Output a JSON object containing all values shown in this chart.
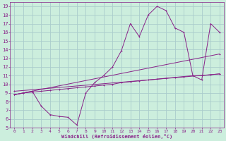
{
  "xlabel": "Windchill (Refroidissement éolien,°C)",
  "background_color": "#cceedd",
  "grid_color": "#aacccc",
  "line_color": "#882288",
  "xlim": [
    -0.5,
    23.5
  ],
  "ylim": [
    5,
    19.5
  ],
  "xticks": [
    0,
    1,
    2,
    3,
    4,
    5,
    6,
    7,
    8,
    9,
    10,
    11,
    12,
    13,
    14,
    15,
    16,
    17,
    18,
    19,
    20,
    21,
    22,
    23
  ],
  "yticks": [
    5,
    6,
    7,
    8,
    9,
    10,
    11,
    12,
    13,
    14,
    15,
    16,
    17,
    18,
    19
  ],
  "line_jagged_x": [
    0,
    1,
    2,
    3,
    4,
    5,
    6,
    7,
    8,
    9,
    10,
    11,
    12,
    13,
    14,
    15,
    16,
    17,
    18,
    19,
    20,
    21,
    22,
    23
  ],
  "line_jagged_y": [
    8.8,
    9.0,
    9.2,
    7.5,
    6.5,
    6.3,
    6.2,
    5.3,
    9.0,
    10.2,
    11.0,
    12.0,
    13.9,
    17.0,
    15.5,
    18.0,
    19.0,
    18.5,
    16.5,
    16.0,
    11.0,
    10.5,
    17.0,
    16.0
  ],
  "line_trend1_x": [
    0,
    1,
    2,
    3,
    4,
    5,
    6,
    7,
    8,
    9,
    10,
    11,
    12,
    13,
    14,
    15,
    16,
    17,
    18,
    19,
    20,
    21,
    22,
    23
  ],
  "line_trend1_y": [
    8.8,
    9.0,
    9.1,
    9.2,
    9.3,
    9.4,
    9.5,
    9.6,
    9.7,
    9.8,
    9.9,
    10.0,
    10.2,
    10.3,
    10.4,
    10.5,
    10.6,
    10.7,
    10.8,
    10.9,
    11.0,
    11.0,
    11.1,
    11.2
  ],
  "line_trend2_x": [
    0,
    23
  ],
  "line_trend2_y": [
    8.8,
    13.5
  ],
  "line_trend3_x": [
    0,
    23
  ],
  "line_trend3_y": [
    9.2,
    11.2
  ]
}
